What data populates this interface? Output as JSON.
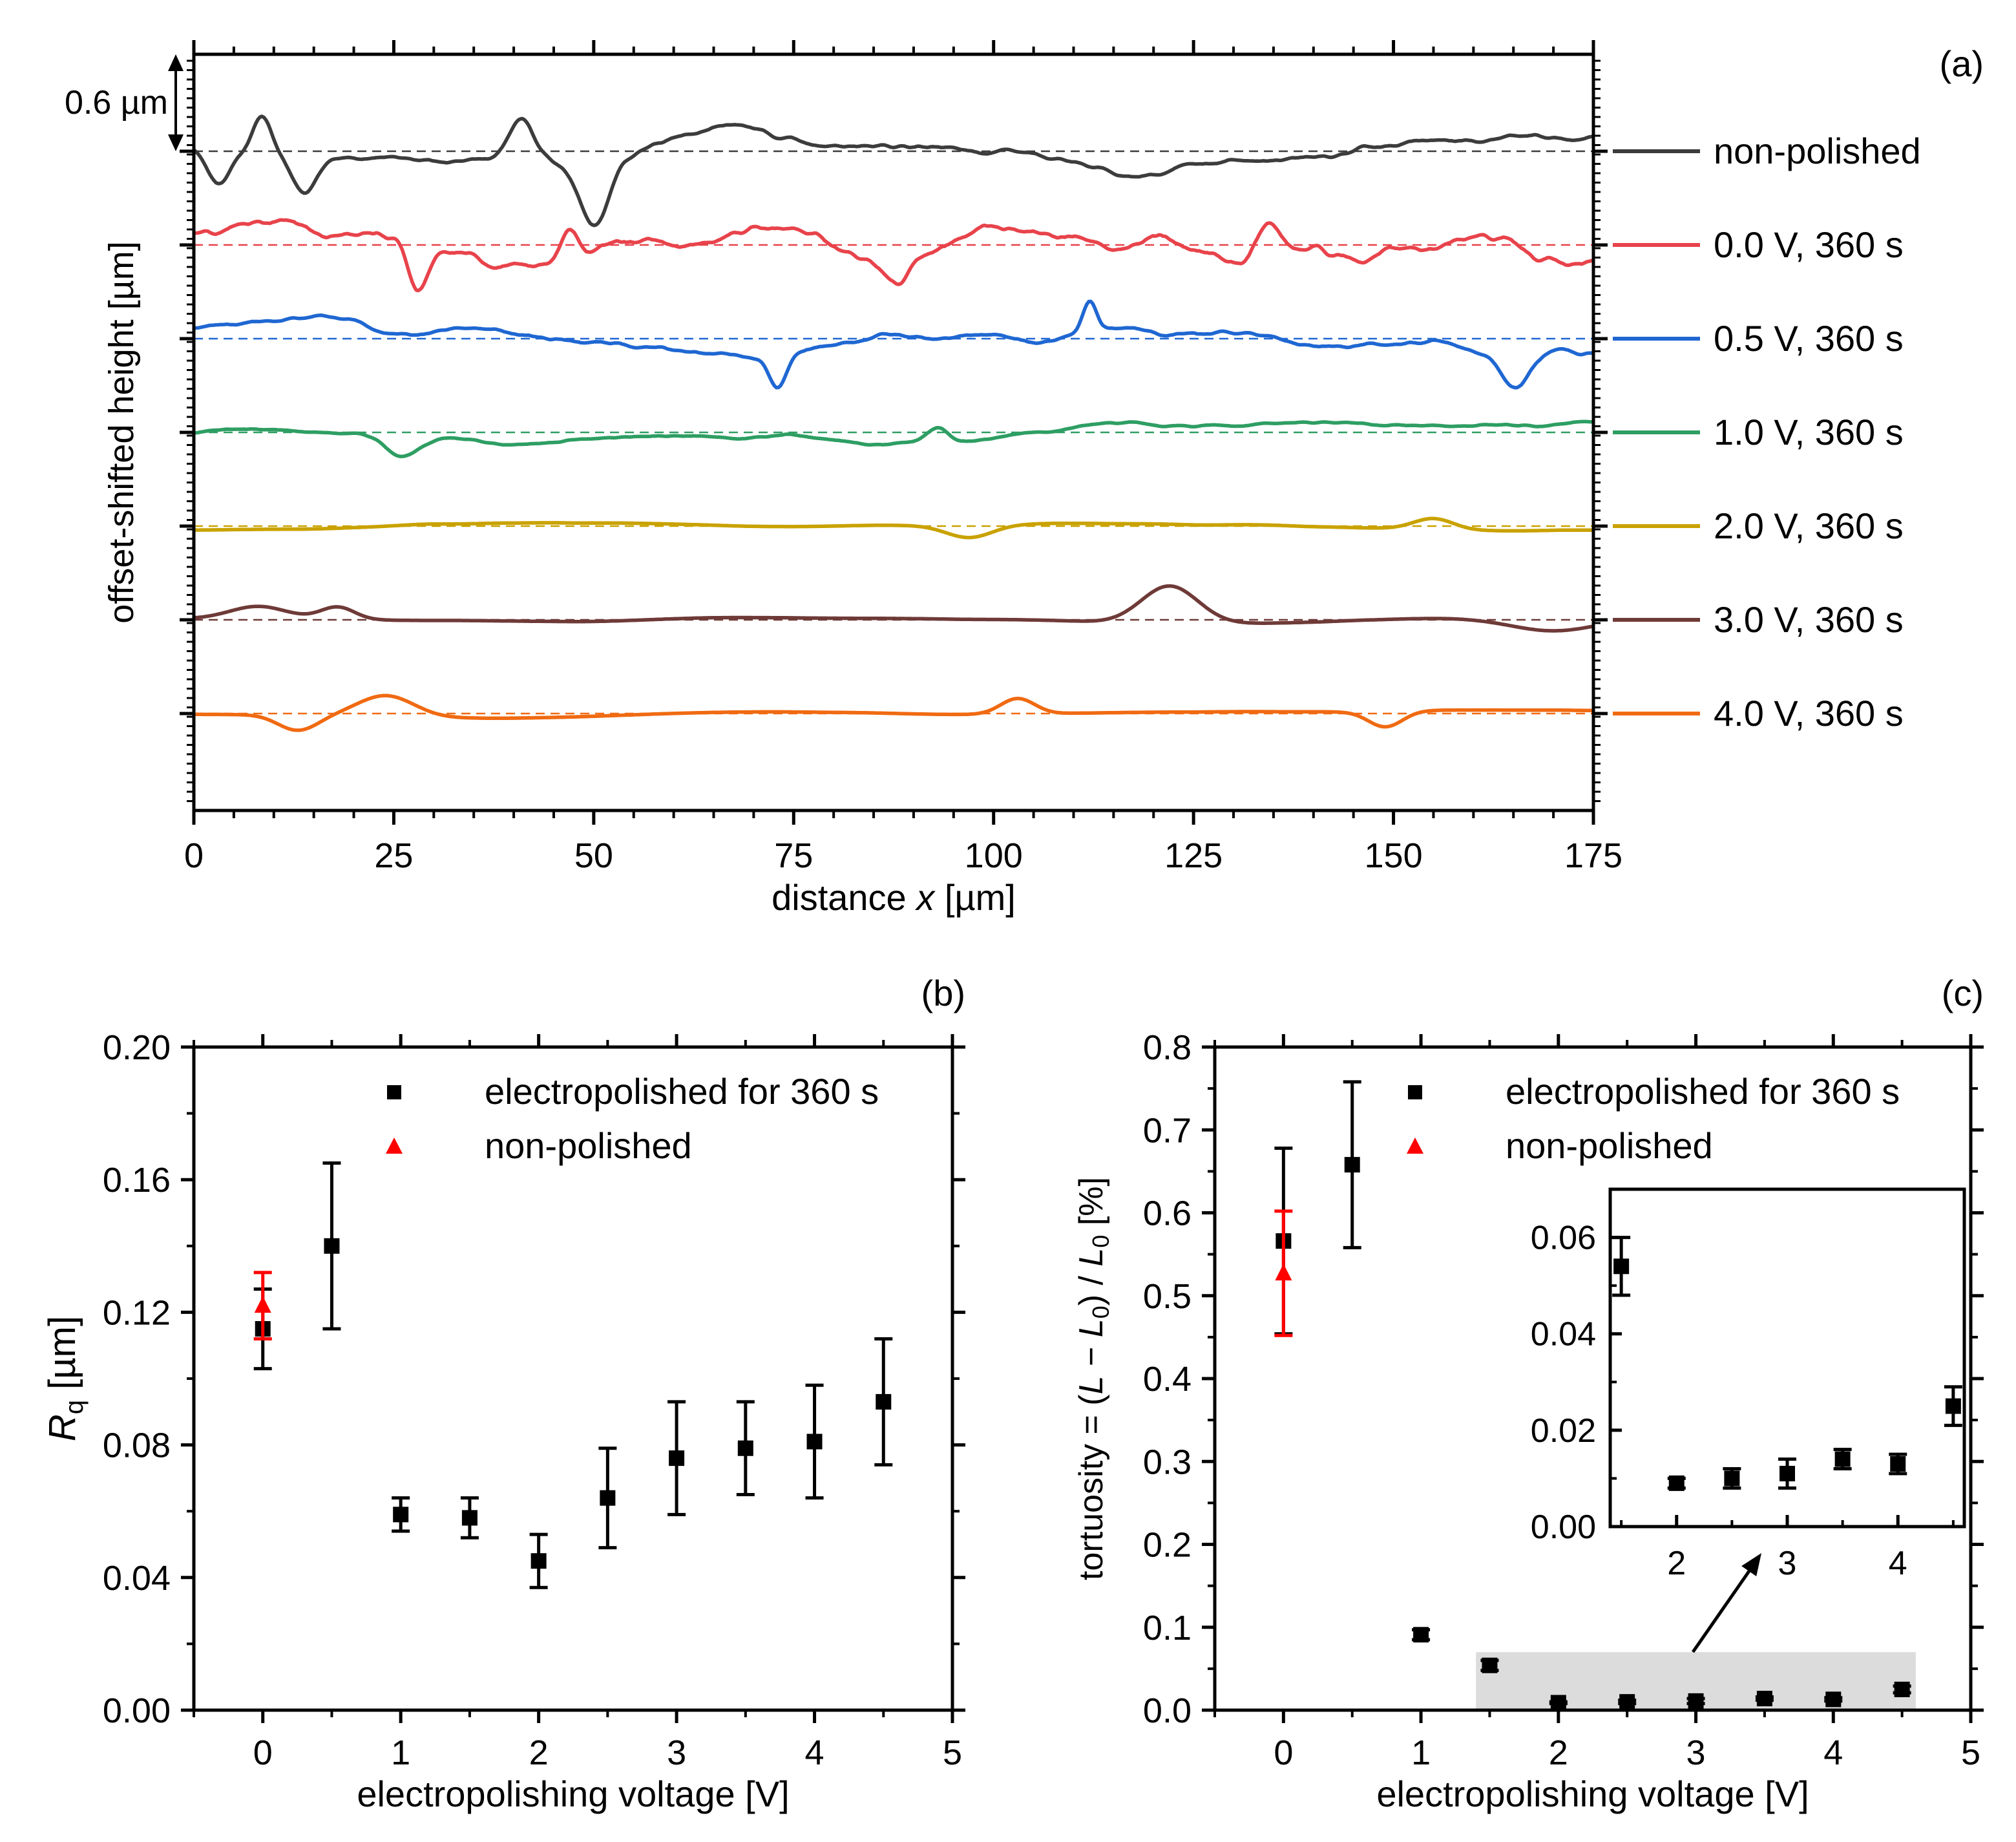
{
  "colors": {
    "nonpolished": "#3c3c3c",
    "v0": "#e8434b",
    "v05": "#1f67d2",
    "v1": "#2e9e63",
    "v2": "#c9a200",
    "v3": "#6e3a37",
    "v4": "#f06a12",
    "black": "#000000",
    "red": "#ff0000",
    "shade": "#dcdcdc"
  },
  "chart_data": [
    {
      "id": "a",
      "type": "line",
      "panel_label": "(a)",
      "xlabel_pre": "distance ",
      "xlabel_var": "x",
      "xlabel_post": " [µm]",
      "ylabel": "offset-shifted height [µm]",
      "xlim": [
        0,
        175
      ],
      "xticks": [
        "0",
        "25",
        "50",
        "75",
        "100",
        "125",
        "150",
        "175"
      ],
      "scale_bar_label": "0.6 µm",
      "scale_bar_um": 0.6,
      "series": [
        {
          "name": "non-polished",
          "color_key": "nonpolished",
          "offset": 0.0,
          "amplitude": 0.34,
          "seed": 3,
          "smooth": 0.35,
          "features": [
            [
              8.5,
              0.22,
              1.5
            ],
            [
              14,
              -0.3,
              2.5
            ],
            [
              41,
              0.28,
              2.2
            ],
            [
              50,
              -0.4,
              2.5
            ],
            [
              3,
              -0.25,
              2.0
            ]
          ]
        },
        {
          "name": "0.0 V, 360 s",
          "color_key": "v0",
          "offset": -0.6,
          "amplitude": 0.32,
          "seed": 11,
          "smooth": 0.35,
          "features": [
            [
              28,
              -0.28,
              1.5
            ],
            [
              47,
              0.22,
              1.5
            ],
            [
              88,
              -0.2,
              2.0
            ],
            [
              134,
              0.22,
              2.0
            ]
          ]
        },
        {
          "name": "0.5 V, 360 s",
          "color_key": "v05",
          "offset": -1.2,
          "amplitude": 0.3,
          "seed": 23,
          "smooth": 0.35,
          "features": [
            [
              73,
              -0.22,
              1.5
            ],
            [
              112,
              0.2,
              1.2
            ],
            [
              165,
              -0.22,
              2.5
            ]
          ]
        },
        {
          "name": "1.0 V, 360 s",
          "color_key": "v1",
          "offset": -1.8,
          "amplitude": 0.16,
          "seed": 37,
          "smooth": 0.35,
          "features": [
            [
              26,
              -0.14,
              3.0
            ],
            [
              93,
              0.1,
              2.0
            ]
          ]
        },
        {
          "name": "2.0 V, 360 s",
          "color_key": "v2",
          "offset": -2.4,
          "amplitude": 0.06,
          "seed": 51,
          "smooth": 0.08,
          "features": [
            [
              97,
              -0.08,
              4.0
            ],
            [
              155,
              0.07,
              3.5
            ]
          ]
        },
        {
          "name": "3.0 V, 360 s",
          "color_key": "v3",
          "offset": -3.0,
          "amplitude": 0.05,
          "seed": 67,
          "smooth": 0.06,
          "features": [
            [
              122,
              0.24,
              5.0
            ],
            [
              8,
              0.08,
              5.0
            ],
            [
              18,
              0.08,
              3.0
            ],
            [
              170,
              -0.09,
              8.0
            ]
          ]
        },
        {
          "name": "4.0 V, 360 s",
          "color_key": "v4",
          "offset": -3.6,
          "amplitude": 0.06,
          "seed": 79,
          "smooth": 0.06,
          "features": [
            [
              24,
              0.14,
              5.0
            ],
            [
              13,
              -0.1,
              3.5
            ],
            [
              103,
              0.1,
              3.0
            ],
            [
              149,
              -0.1,
              3.0
            ]
          ]
        }
      ]
    },
    {
      "id": "b",
      "type": "scatter",
      "panel_label": "(b)",
      "xlabel": "electropolishing voltage [V]",
      "ylabel_var": "R",
      "ylabel_sub": "q",
      "ylabel_post": " [µm]",
      "xlim": [
        -0.5,
        5
      ],
      "ylim": [
        0,
        0.2
      ],
      "xticks": [
        "0",
        "1",
        "2",
        "3",
        "4",
        "5"
      ],
      "xtick_values": [
        0,
        1,
        2,
        3,
        4,
        5
      ],
      "yticks": [
        "0.00",
        "0.04",
        "0.08",
        "0.12",
        "0.16",
        "0.20"
      ],
      "ytick_values": [
        0,
        0.04,
        0.08,
        0.12,
        0.16,
        0.2
      ],
      "legend": [
        "electropolished for 360 s",
        "non-polished"
      ],
      "series": [
        {
          "name": "electropolished for 360 s",
          "marker": "square",
          "color_key": "black",
          "x": [
            0,
            0.5,
            1,
            1.5,
            2,
            2.5,
            3,
            3.5,
            4,
            4.5
          ],
          "y": [
            0.115,
            0.14,
            0.059,
            0.058,
            0.045,
            0.064,
            0.076,
            0.079,
            0.081,
            0.093
          ],
          "err": [
            0.012,
            0.025,
            0.005,
            0.006,
            0.008,
            0.015,
            0.017,
            0.014,
            0.017,
            0.019
          ]
        },
        {
          "name": "non-polished",
          "marker": "triangle",
          "color_key": "red",
          "x": [
            0
          ],
          "y": [
            0.122
          ],
          "err": [
            0.01
          ]
        }
      ]
    },
    {
      "id": "c",
      "type": "scatter",
      "panel_label": "(c)",
      "xlabel": "electropolishing voltage [V]",
      "ylabel_pre": "tortuosity = (",
      "ylabel_L": "L",
      "ylabel_mid": " − ",
      "ylabel_L0": "L",
      "ylabel_sub0": "0",
      "ylabel_mid2": ") / ",
      "ylabel_L02": "L",
      "ylabel_sub02": "0",
      "ylabel_post": " [%]",
      "xlim": [
        -0.5,
        5
      ],
      "ylim": [
        0,
        0.8
      ],
      "xticks": [
        "0",
        "1",
        "2",
        "3",
        "4",
        "5"
      ],
      "xtick_values": [
        0,
        1,
        2,
        3,
        4,
        5
      ],
      "yticks": [
        "0.0",
        "0.1",
        "0.2",
        "0.3",
        "0.4",
        "0.5",
        "0.6",
        "0.7",
        "0.8"
      ],
      "ytick_values": [
        0,
        0.1,
        0.2,
        0.3,
        0.4,
        0.5,
        0.6,
        0.7,
        0.8
      ],
      "legend": [
        "electropolished for 360 s",
        "non-polished"
      ],
      "shaded_region": {
        "x": [
          1.4,
          4.6
        ],
        "y": [
          0,
          0.07
        ]
      },
      "series": [
        {
          "name": "electropolished for 360 s",
          "marker": "square",
          "color_key": "black",
          "x": [
            0,
            0.5,
            1,
            1.5,
            2,
            2.5,
            3,
            3.5,
            4,
            4.5
          ],
          "y": [
            0.566,
            0.658,
            0.091,
            0.054,
            0.009,
            0.01,
            0.011,
            0.014,
            0.013,
            0.025
          ],
          "err": [
            0.112,
            0.1,
            0.006,
            0.006,
            0.001,
            0.002,
            0.003,
            0.002,
            0.002,
            0.004
          ]
        },
        {
          "name": "non-polished",
          "marker": "triangle",
          "color_key": "red",
          "x": [
            0
          ],
          "y": [
            0.527
          ],
          "err": [
            0.075
          ]
        }
      ],
      "inset": {
        "xlim": [
          1.4,
          4.6
        ],
        "ylim": [
          0,
          0.07
        ],
        "xticks": [
          "2",
          "3",
          "4"
        ],
        "xtick_values": [
          2,
          3,
          4
        ],
        "yticks": [
          "0.00",
          "0.02",
          "0.04",
          "0.06"
        ],
        "ytick_values": [
          0,
          0.02,
          0.04,
          0.06
        ]
      }
    }
  ]
}
